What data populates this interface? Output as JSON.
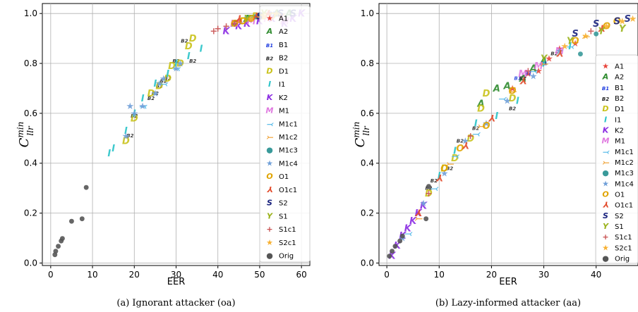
{
  "markers": [
    {
      "code": "A1",
      "glyph": "★",
      "color": "#e8453c"
    },
    {
      "code": "A2",
      "glyph": "A",
      "color": "#2e8b2e"
    },
    {
      "code": "B1",
      "glyph": "B1",
      "color": "#1f3de0"
    },
    {
      "code": "B2",
      "glyph": "B2",
      "color": "#222222"
    },
    {
      "code": "D1",
      "glyph": "D",
      "color": "#c9c21a"
    },
    {
      "code": "I1",
      "glyph": "I",
      "color": "#29c3c8"
    },
    {
      "code": "K2",
      "glyph": "K",
      "color": "#8a2be2"
    },
    {
      "code": "M1",
      "glyph": "M",
      "color": "#e07ae0"
    },
    {
      "code": "M1c1",
      "glyph": "⤙",
      "color": "#4fb7e8"
    },
    {
      "code": "M1c2",
      "glyph": "⤚",
      "color": "#f0a030"
    },
    {
      "code": "M1c3",
      "glyph": "●",
      "color": "#3a9a9a"
    },
    {
      "code": "M1c4",
      "glyph": "★",
      "color": "#6f9fd8"
    },
    {
      "code": "O1",
      "glyph": "O",
      "color": "#e0a400"
    },
    {
      "code": "O1c1",
      "glyph": "⅄",
      "color": "#e24a2a"
    },
    {
      "code": "S2",
      "glyph": "S",
      "color": "#1a237e"
    },
    {
      "code": "S1",
      "glyph": "Y",
      "color": "#9ab21a"
    },
    {
      "code": "S1c1",
      "glyph": "+",
      "color": "#c85050"
    },
    {
      "code": "S2c1",
      "glyph": "★",
      "color": "#f7b030"
    },
    {
      "code": "Orig",
      "glyph": "●",
      "color": "#555555"
    }
  ],
  "chart_data": [
    {
      "type": "scatter",
      "title": "",
      "xlabel": "EER",
      "ylabel": "C_llr^min",
      "ylabel_main": "C",
      "ylabel_sup": "min",
      "ylabel_sub": "llr",
      "xlim": [
        -2,
        62
      ],
      "ylim": [
        -0.01,
        1.04
      ],
      "xticks": [
        0,
        10,
        20,
        30,
        40,
        50,
        60
      ],
      "yticks": [
        0.0,
        0.2,
        0.4,
        0.6,
        0.8,
        1.0
      ],
      "grid": true,
      "legend_position": "right",
      "caption": "(a) Ignorant attacker (oa)",
      "series": [
        {
          "name": "A1",
          "points": [
            [
              45,
              0.97
            ],
            [
              48,
              0.98
            ],
            [
              52,
              1.0
            ],
            [
              55,
              0.99
            ]
          ]
        },
        {
          "name": "A2",
          "points": [
            [
              44,
              0.96
            ],
            [
              47,
              0.98
            ],
            [
              50,
              0.99
            ],
            [
              54,
              1.0
            ],
            [
              57,
              1.0
            ]
          ]
        },
        {
          "name": "B1",
          "points": [
            [
              50,
              0.99
            ],
            [
              53,
              1.0
            ]
          ]
        },
        {
          "name": "B2",
          "points": [
            [
              19,
              0.51
            ],
            [
              20,
              0.59
            ],
            [
              24,
              0.66
            ],
            [
              25,
              0.68
            ],
            [
              26,
              0.71
            ],
            [
              27,
              0.73
            ],
            [
              28,
              0.74
            ],
            [
              30,
              0.81
            ],
            [
              32,
              0.89
            ],
            [
              34,
              0.81
            ]
          ]
        },
        {
          "name": "D1",
          "points": [
            [
              18,
              0.49
            ],
            [
              20,
              0.58
            ],
            [
              24,
              0.68
            ],
            [
              26,
              0.71
            ],
            [
              28,
              0.74
            ],
            [
              29,
              0.79
            ],
            [
              31,
              0.8
            ],
            [
              33,
              0.87
            ],
            [
              34,
              0.9
            ],
            [
              46,
              0.97
            ],
            [
              49,
              0.99
            ]
          ]
        },
        {
          "name": "I1",
          "points": [
            [
              14,
              0.44
            ],
            [
              15,
              0.46
            ],
            [
              18,
              0.53
            ],
            [
              20,
              0.6
            ],
            [
              22,
              0.66
            ],
            [
              25,
              0.72
            ],
            [
              28,
              0.76
            ],
            [
              30,
              0.8
            ],
            [
              33,
              0.83
            ],
            [
              36,
              0.86
            ],
            [
              48,
              0.98
            ]
          ]
        },
        {
          "name": "K2",
          "points": [
            [
              42,
              0.93
            ],
            [
              45,
              0.95
            ],
            [
              47,
              0.96
            ],
            [
              50,
              0.97
            ],
            [
              53,
              0.98
            ],
            [
              56,
              0.96
            ],
            [
              58,
              0.98
            ],
            [
              60,
              1.0
            ]
          ]
        },
        {
          "name": "M1",
          "points": [
            [
              44,
              0.96
            ],
            [
              48,
              0.97
            ],
            [
              52,
              0.98
            ],
            [
              56,
              0.97
            ]
          ]
        },
        {
          "name": "M1c1",
          "points": [
            [
              22,
              0.63
            ],
            [
              27,
              0.72
            ],
            [
              30,
              0.78
            ],
            [
              47,
              0.99
            ]
          ]
        },
        {
          "name": "M1c2",
          "points": [
            [
              44,
              0.97
            ],
            [
              50,
              0.99
            ],
            [
              55,
              1.0
            ]
          ]
        },
        {
          "name": "M1c3",
          "points": [
            [
              49,
              0.99
            ],
            [
              54,
              1.0
            ]
          ]
        },
        {
          "name": "M1c4",
          "points": [
            [
              18,
              0.51
            ],
            [
              19,
              0.63
            ],
            [
              20,
              0.6
            ],
            [
              22,
              0.63
            ],
            [
              25,
              0.68
            ],
            [
              26,
              0.72
            ],
            [
              27,
              0.74
            ],
            [
              30,
              0.78
            ],
            [
              31,
              0.8
            ]
          ]
        },
        {
          "name": "O1",
          "points": [
            [
              44,
              0.96
            ],
            [
              46,
              0.97
            ],
            [
              48,
              0.98
            ],
            [
              51,
              0.99
            ],
            [
              53,
              0.99
            ]
          ]
        },
        {
          "name": "O1c1",
          "points": [
            [
              45,
              0.98
            ],
            [
              49,
              0.99
            ],
            [
              52,
              1.0
            ]
          ]
        },
        {
          "name": "S2",
          "points": [
            [
              50,
              0.99
            ],
            [
              55,
              1.0
            ],
            [
              58,
              1.0
            ]
          ]
        },
        {
          "name": "S1",
          "points": [
            [
              47,
              0.98
            ],
            [
              51,
              1.0
            ]
          ]
        },
        {
          "name": "S1c1",
          "points": [
            [
              39,
              0.93
            ],
            [
              40,
              0.94
            ],
            [
              42,
              0.95
            ],
            [
              44,
              0.96
            ]
          ]
        },
        {
          "name": "S2c1",
          "points": [
            [
              48,
              0.98
            ],
            [
              51,
              0.99
            ],
            [
              54,
              1.0
            ]
          ]
        },
        {
          "name": "Orig",
          "points": [
            [
              1.0,
              0.035
            ],
            [
              1.2,
              0.05
            ],
            [
              1.8,
              0.07
            ],
            [
              2.5,
              0.09
            ],
            [
              2.8,
              0.1
            ],
            [
              5,
              0.17
            ],
            [
              7.5,
              0.18
            ],
            [
              8.5,
              0.305
            ]
          ]
        }
      ]
    },
    {
      "type": "scatter",
      "title": "",
      "xlabel": "EER",
      "ylabel": "C_llr^min",
      "ylabel_main": "C",
      "ylabel_sup": "min",
      "ylabel_sub": "llr",
      "xlim": [
        -1.5,
        48
      ],
      "ylim": [
        -0.01,
        1.04
      ],
      "xticks": [
        0,
        10,
        20,
        30,
        40
      ],
      "yticks": [
        0.0,
        0.2,
        0.4,
        0.6,
        0.8,
        1.0
      ],
      "grid": true,
      "legend_position": "right",
      "caption": "(b) Lazy-informed attacker (aa)",
      "series": [
        {
          "name": "A1",
          "points": [
            [
              24,
              0.7
            ],
            [
              27,
              0.76
            ],
            [
              29,
              0.77
            ],
            [
              31,
              0.82
            ],
            [
              33,
              0.86
            ],
            [
              36,
              0.88
            ]
          ]
        },
        {
          "name": "A2",
          "points": [
            [
              18,
              0.64
            ],
            [
              21,
              0.7
            ],
            [
              23,
              0.71
            ],
            [
              26,
              0.74
            ],
            [
              28,
              0.78
            ],
            [
              30,
              0.81
            ]
          ]
        },
        {
          "name": "B1",
          "points": [
            [
              25,
              0.74
            ],
            [
              27,
              0.76
            ],
            [
              30,
              0.8
            ]
          ]
        },
        {
          "name": "B2",
          "points": [
            [
              8,
              0.3
            ],
            [
              9,
              0.33
            ],
            [
              12,
              0.38
            ],
            [
              14,
              0.49
            ],
            [
              17,
              0.54
            ],
            [
              24,
              0.62
            ],
            [
              26,
              0.74
            ],
            [
              32,
              0.84
            ]
          ]
        },
        {
          "name": "D1",
          "points": [
            [
              8,
              0.28
            ],
            [
              11,
              0.38
            ],
            [
              13,
              0.42
            ],
            [
              16,
              0.5
            ],
            [
              18,
              0.62
            ],
            [
              19,
              0.68
            ],
            [
              24,
              0.66
            ]
          ]
        },
        {
          "name": "I1",
          "points": [
            [
              10,
              0.35
            ],
            [
              13,
              0.45
            ],
            [
              17,
              0.56
            ],
            [
              21,
              0.59
            ],
            [
              25,
              0.65
            ],
            [
              30,
              0.8
            ],
            [
              35,
              0.87
            ]
          ]
        },
        {
          "name": "K2",
          "points": [
            [
              1,
              0.03
            ],
            [
              2,
              0.07
            ],
            [
              3,
              0.11
            ],
            [
              4,
              0.14
            ],
            [
              5,
              0.17
            ],
            [
              6,
              0.2
            ],
            [
              7,
              0.23
            ]
          ]
        },
        {
          "name": "M1",
          "points": [
            [
              26,
              0.76
            ],
            [
              29,
              0.79
            ],
            [
              33,
              0.85
            ]
          ]
        },
        {
          "name": "M1c1",
          "points": [
            [
              4,
              0.12
            ],
            [
              9,
              0.3
            ],
            [
              13,
              0.43
            ],
            [
              17,
              0.52
            ],
            [
              22,
              0.66
            ],
            [
              28,
              0.77
            ],
            [
              35,
              0.87
            ]
          ]
        },
        {
          "name": "M1c2",
          "points": [
            [
              6,
              0.18
            ],
            [
              12,
              0.4
            ],
            [
              18,
              0.55
            ],
            [
              24,
              0.69
            ],
            [
              30,
              0.8
            ],
            [
              38,
              0.91
            ]
          ]
        },
        {
          "name": "M1c3",
          "points": [
            [
              37,
              0.84
            ],
            [
              40,
              0.92
            ]
          ]
        },
        {
          "name": "M1c4",
          "points": [
            [
              3,
              0.1
            ],
            [
              7,
              0.24
            ],
            [
              11,
              0.36
            ],
            [
              15,
              0.49
            ],
            [
              19,
              0.56
            ],
            [
              23,
              0.65
            ],
            [
              28,
              0.75
            ],
            [
              33,
              0.85
            ]
          ]
        },
        {
          "name": "O1",
          "points": [
            [
              11,
              0.38
            ],
            [
              14,
              0.46
            ],
            [
              19,
              0.55
            ],
            [
              24,
              0.69
            ],
            [
              36,
              0.89
            ],
            [
              42,
              0.95
            ],
            [
              44,
              0.97
            ]
          ]
        },
        {
          "name": "O1c1",
          "points": [
            [
              6,
              0.2
            ],
            [
              10,
              0.34
            ],
            [
              15,
              0.47
            ],
            [
              20,
              0.58
            ],
            [
              26,
              0.73
            ],
            [
              33,
              0.84
            ],
            [
              41,
              0.94
            ]
          ]
        },
        {
          "name": "S2",
          "points": [
            [
              36,
              0.92
            ],
            [
              40,
              0.96
            ],
            [
              44,
              0.97
            ],
            [
              46,
              0.98
            ]
          ]
        },
        {
          "name": "S1",
          "points": [
            [
              30,
              0.82
            ],
            [
              35,
              0.89
            ],
            [
              41,
              0.93
            ],
            [
              45,
              0.94
            ]
          ]
        },
        {
          "name": "S1c1",
          "points": [
            [
              8,
              0.28
            ],
            [
              16,
              0.51
            ],
            [
              27,
              0.77
            ],
            [
              39,
              0.93
            ]
          ]
        },
        {
          "name": "S2c1",
          "points": [
            [
              34,
              0.87
            ],
            [
              38,
              0.91
            ],
            [
              42,
              0.95
            ],
            [
              45,
              0.97
            ],
            [
              47,
              0.98
            ]
          ]
        },
        {
          "name": "Orig",
          "points": [
            [
              0.5,
              0.03
            ],
            [
              1.0,
              0.05
            ],
            [
              1.6,
              0.07
            ],
            [
              2.5,
              0.09
            ],
            [
              3,
              0.11
            ],
            [
              8,
              0.31
            ],
            [
              7.5,
              0.18
            ]
          ]
        }
      ]
    }
  ]
}
